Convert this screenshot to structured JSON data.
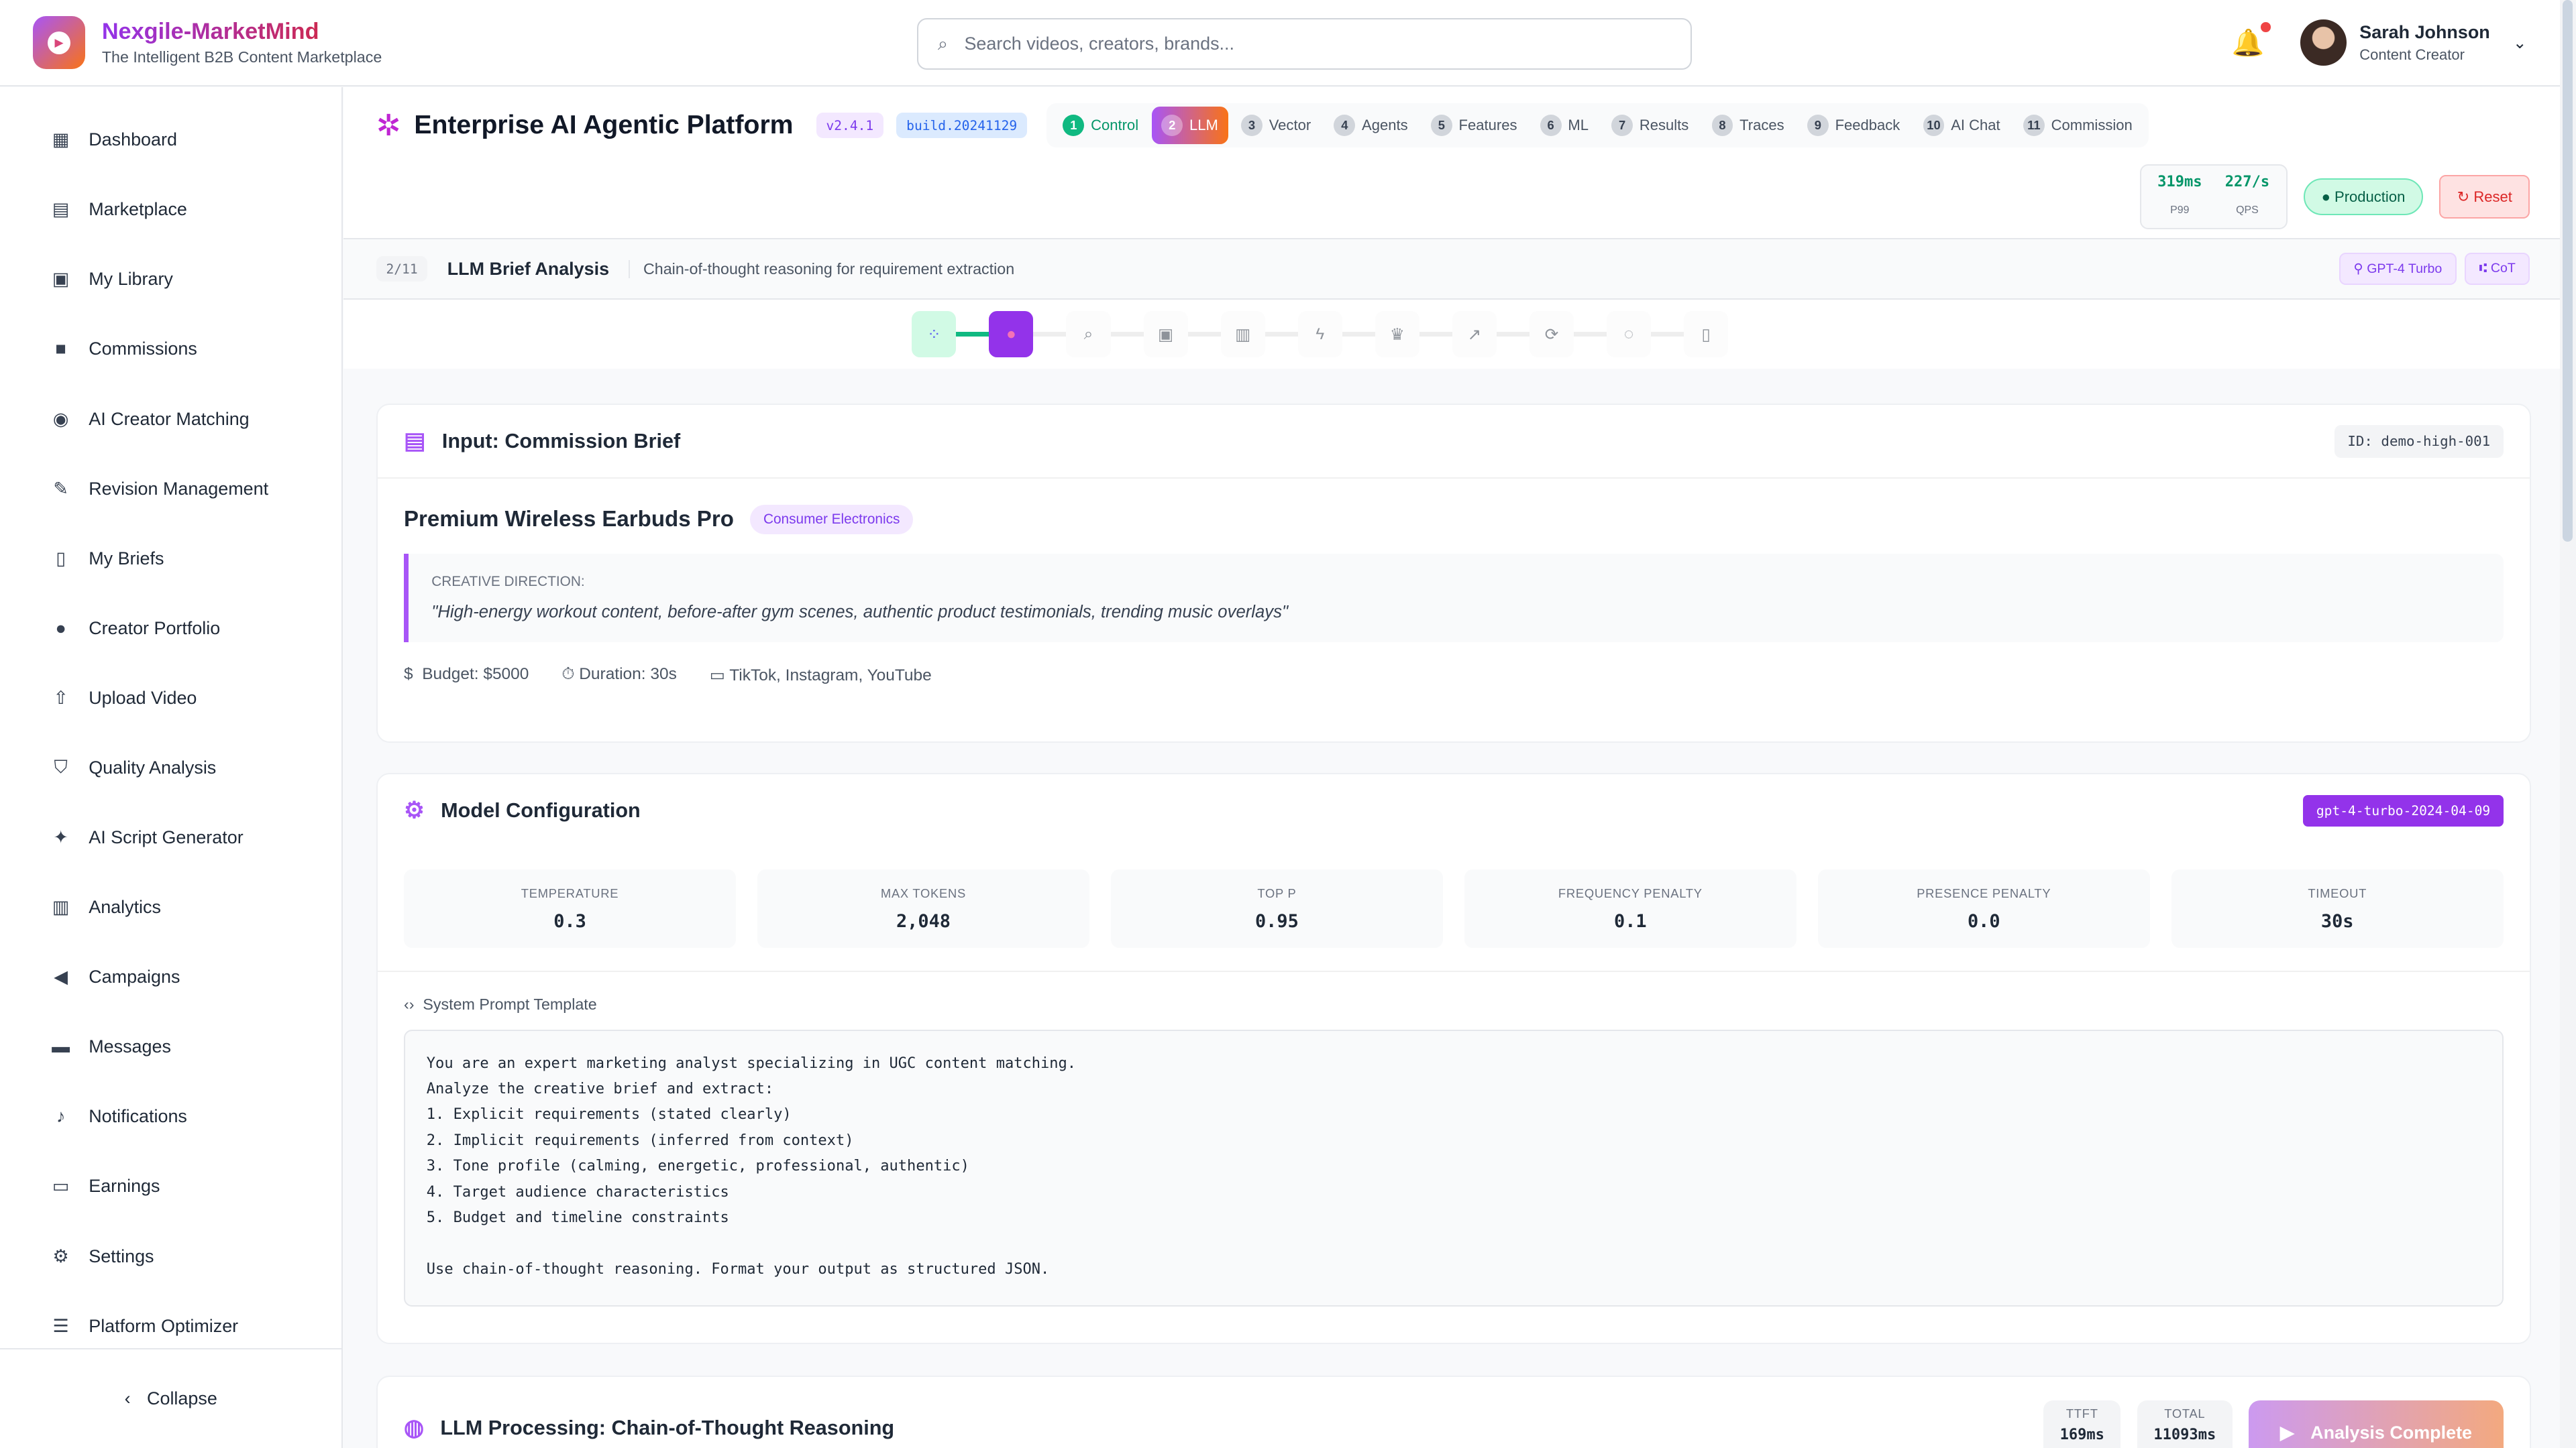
{
  "app": {
    "name": "Nexgile-MarketMind",
    "tagline": "The Intelligent B2B Content Marketplace"
  },
  "search": {
    "placeholder": "Search videos, creators, brands..."
  },
  "user": {
    "name": "Sarah Johnson",
    "role": "Content Creator"
  },
  "sidebar": {
    "items": [
      {
        "label": "Dashboard",
        "icon": "▦"
      },
      {
        "label": "Marketplace",
        "icon": "▤"
      },
      {
        "label": "My Library",
        "icon": "▣"
      },
      {
        "label": "Commissions",
        "icon": "■"
      },
      {
        "label": "AI Creator Matching",
        "icon": "◉"
      },
      {
        "label": "Revision Management",
        "icon": "✎"
      },
      {
        "label": "My Briefs",
        "icon": "▯"
      },
      {
        "label": "Creator Portfolio",
        "icon": "●"
      },
      {
        "label": "Upload Video",
        "icon": "⇧"
      },
      {
        "label": "Quality Analysis",
        "icon": "⛉"
      },
      {
        "label": "AI Script Generator",
        "icon": "✦"
      },
      {
        "label": "Analytics",
        "icon": "▥"
      },
      {
        "label": "Campaigns",
        "icon": "◀"
      },
      {
        "label": "Messages",
        "icon": "▬"
      },
      {
        "label": "Notifications",
        "icon": "♪"
      },
      {
        "label": "Earnings",
        "icon": "▭"
      },
      {
        "label": "Settings",
        "icon": "⚙"
      },
      {
        "label": "Platform Optimizer",
        "icon": "☰"
      }
    ],
    "collapse": "Collapse"
  },
  "page": {
    "title": "Enterprise AI Agentic Platform",
    "version": "v2.4.1",
    "build": "build.20241129",
    "tabs": [
      {
        "n": "1",
        "label": "Control"
      },
      {
        "n": "2",
        "label": "LLM"
      },
      {
        "n": "3",
        "label": "Vector"
      },
      {
        "n": "4",
        "label": "Agents"
      },
      {
        "n": "5",
        "label": "Features"
      },
      {
        "n": "6",
        "label": "ML"
      },
      {
        "n": "7",
        "label": "Results"
      },
      {
        "n": "8",
        "label": "Traces"
      },
      {
        "n": "9",
        "label": "Feedback"
      },
      {
        "n": "10",
        "label": "AI Chat"
      },
      {
        "n": "11",
        "label": "Commission"
      }
    ],
    "p99": "319ms",
    "p99_label": "P99",
    "qps": "227/s",
    "qps_label": "QPS",
    "env": "Production",
    "reset": "Reset"
  },
  "step": {
    "counter": "2/11",
    "title": "LLM Brief Analysis",
    "desc": "Chain-of-thought reasoning for requirement extraction",
    "chips": [
      "GPT-4 Turbo",
      "CoT"
    ]
  },
  "brief": {
    "header": "Input: Commission Brief",
    "id": "ID: demo-high-001",
    "product": "Premium Wireless Earbuds Pro",
    "category": "Consumer Electronics",
    "direction_label": "CREATIVE DIRECTION:",
    "direction": "\"High-energy workout content, before-after gym scenes, authentic product testimonials, trending music overlays\"",
    "budget": "Budget: $5000",
    "duration": "Duration: 30s",
    "platforms": "TikTok, Instagram, YouTube"
  },
  "model": {
    "header": "Model Configuration",
    "model_id": "gpt-4-turbo-2024-04-09",
    "params": [
      {
        "k": "TEMPERATURE",
        "v": "0.3"
      },
      {
        "k": "MAX TOKENS",
        "v": "2,048"
      },
      {
        "k": "TOP P",
        "v": "0.95"
      },
      {
        "k": "FREQUENCY PENALTY",
        "v": "0.1"
      },
      {
        "k": "PRESENCE PENALTY",
        "v": "0.0"
      },
      {
        "k": "TIMEOUT",
        "v": "30s"
      }
    ],
    "prompt_label": "System Prompt Template",
    "prompt": "You are an expert marketing analyst specializing in UGC content matching.\nAnalyze the creative brief and extract:\n1. Explicit requirements (stated clearly)\n2. Implicit requirements (inferred from context)\n3. Tone profile (calming, energetic, professional, authentic)\n4. Target audience characteristics\n5. Budget and timeline constraints\n\nUse chain-of-thought reasoning. Format your output as structured JSON."
  },
  "processing": {
    "header": "LLM Processing: Chain-of-Thought Reasoning",
    "ttft_label": "TTFT",
    "ttft": "169ms",
    "total_label": "TOTAL",
    "total": "11093ms",
    "button": "Analysis Complete"
  }
}
